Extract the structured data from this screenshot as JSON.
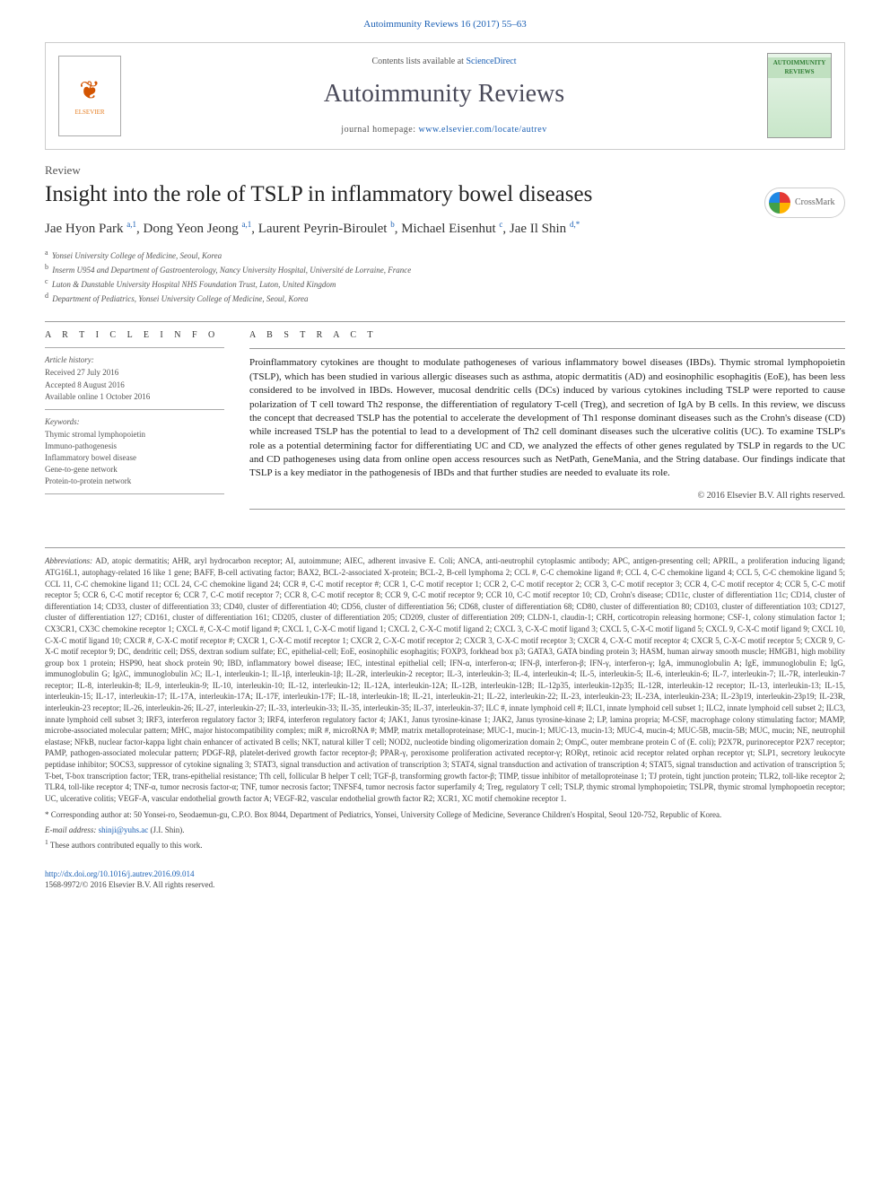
{
  "citation": {
    "journal_link_text": "Autoimmunity Reviews 16 (2017) 55–63"
  },
  "banner": {
    "contents_prefix": "Contents lists available at ",
    "contents_link": "ScienceDirect",
    "journal_title": "Autoimmunity Reviews",
    "homepage_prefix": "journal homepage: ",
    "homepage_link": "www.elsevier.com/locate/autrev",
    "elsevier_label": "ELSEVIER",
    "cover_label": "AUTOIMMUNITY REVIEWS"
  },
  "article": {
    "type": "Review",
    "title": "Insight into the role of TSLP in inflammatory bowel diseases",
    "crossmark_label": "CrossMark"
  },
  "authors_line": "Jae Hyon Park a,1, Dong Yeon Jeong a,1, Laurent Peyrin-Biroulet b, Michael Eisenhut c, Jae Il Shin d,*",
  "authors": [
    {
      "name": "Jae Hyon Park ",
      "sup": "a,1"
    },
    {
      "name": ", Dong Yeon Jeong ",
      "sup": "a,1"
    },
    {
      "name": ", Laurent Peyrin-Biroulet ",
      "sup": "b"
    },
    {
      "name": ", Michael Eisenhut ",
      "sup": "c"
    },
    {
      "name": ", Jae Il Shin ",
      "sup": "d,*"
    }
  ],
  "affiliations": [
    {
      "sup": "a",
      "text": "Yonsei University College of Medicine, Seoul, Korea"
    },
    {
      "sup": "b",
      "text": "Inserm U954 and Department of Gastroenterology, Nancy University Hospital, Université de Lorraine, France"
    },
    {
      "sup": "c",
      "text": "Luton & Dunstable University Hospital NHS Foundation Trust, Luton, United Kingdom"
    },
    {
      "sup": "d",
      "text": "Department of Pediatrics, Yonsei University College of Medicine, Seoul, Korea"
    }
  ],
  "info": {
    "section_title": "A R T I C L E   I N F O",
    "history_head": "Article history:",
    "history": [
      "Received 27 July 2016",
      "Accepted 8 August 2016",
      "Available online 1 October 2016"
    ],
    "keywords_head": "Keywords:",
    "keywords": [
      "Thymic stromal lymphopoietin",
      "Immuno-pathogenesis",
      "Inflammatory bowel disease",
      "Gene-to-gene network",
      "Protein-to-protein network"
    ]
  },
  "abstract": {
    "section_title": "A B S T R A C T",
    "text": "Proinflammatory cytokines are thought to modulate pathogeneses of various inflammatory bowel diseases (IBDs). Thymic stromal lymphopoietin (TSLP), which has been studied in various allergic diseases such as asthma, atopic dermatitis (AD) and eosinophilic esophagitis (EoE), has been less considered to be involved in IBDs. However, mucosal dendritic cells (DCs) induced by various cytokines including TSLP were reported to cause polarization of T cell toward Th2 response, the differentiation of regulatory T-cell (Treg), and secretion of IgA by B cells. In this review, we discuss the concept that decreased TSLP has the potential to accelerate the development of Th1 response dominant diseases such as the Crohn's disease (CD) while increased TSLP has the potential to lead to a development of Th2 cell dominant diseases such the ulcerative colitis (UC). To examine TSLP's role as a potential determining factor for differentiating UC and CD, we analyzed the effects of other genes regulated by TSLP in regards to the UC and CD pathogeneses using data from online open access resources such as NetPath, GeneMania, and the String database. Our findings indicate that TSLP is a key mediator in the pathogenesis of IBDs and that further studies are needed to evaluate its role.",
    "copyright": "© 2016 Elsevier B.V. All rights reserved."
  },
  "abbreviations": {
    "label": "Abbreviations:",
    "text": " AD, atopic dermatitis; AHR, aryl hydrocarbon receptor; AI, autoimmune; AIEC, adherent invasive E. Coli; ANCA, anti-neutrophil cytoplasmic antibody; APC, antigen-presenting cell; APRIL, a proliferation inducing ligand; ATG16L1, autophagy-related 16 like 1 gene; BAFF, B-cell activating factor; BAX2, BCL-2-associated X-protein; BCL-2, B-cell lymphoma 2; CCL #, C-C chemokine ligand #; CCL 4, C-C chemokine ligand 4; CCL 5, C-C chemokine ligand 5; CCL 11, C-C chemokine ligand 11; CCL 24, C-C chemokine ligand 24; CCR #, C-C motif receptor #; CCR 1, C-C motif receptor 1; CCR 2, C-C motif receptor 2; CCR 3, C-C motif receptor 3; CCR 4, C-C motif receptor 4; CCR 5, C-C motif receptor 5; CCR 6, C-C motif receptor 6; CCR 7, C-C motif receptor 7; CCR 8, C-C motif receptor 8; CCR 9, C-C motif receptor 9; CCR 10, C-C motif receptor 10; CD, Crohn's disease; CD11c, cluster of differentiation 11c; CD14, cluster of differentiation 14; CD33, cluster of differentiation 33; CD40, cluster of differentiation 40; CD56, cluster of differentiation 56; CD68, cluster of differentiation 68; CD80, cluster of differentiation 80; CD103, cluster of differentiation 103; CD127, cluster of differentiation 127; CD161, cluster of differentiation 161; CD205, cluster of differentiation 205; CD209, cluster of differentiation 209; CLDN-1, claudin-1; CRH, corticotropin releasing hormone; CSF-1, colony stimulation factor 1; CX3CR1, CX3C chemokine receptor 1; CXCL #, C-X-C motif ligand #; CXCL 1, C-X-C motif ligand 1; CXCL 2, C-X-C motif ligand 2; CXCL 3, C-X-C motif ligand 3; CXCL 5, C-X-C motif ligand 5; CXCL 9, C-X-C motif ligand 9; CXCL 10, C-X-C motif ligand 10; CXCR #, C-X-C motif receptor #; CXCR 1, C-X-C motif receptor 1; CXCR 2, C-X-C motif receptor 2; CXCR 3, C-X-C motif receptor 3; CXCR 4, C-X-C motif receptor 4; CXCR 5, C-X-C motif receptor 5; CXCR 9, C-X-C motif receptor 9; DC, dendritic cell; DSS, dextran sodium sulfate; EC, epithelial-cell; EoE, eosinophilic esophagitis; FOXP3, forkhead box p3; GATA3, GATA binding protein 3; HASM, human airway smooth muscle; HMGB1, high mobility group box 1 protein; HSP90, heat shock protein 90; IBD, inflammatory bowel disease; IEC, intestinal epithelial cell; IFN-α, interferon-α; IFN-β, interferon-β; IFN-γ, interferon-γ; IgA, immunoglobulin A; IgE, immunoglobulin E; IgG, immunoglobulin G; IgλC, immunoglobulin λC; IL-1, interleukin-1; IL-1β, interleukin-1β; IL-2R, interleukin-2 receptor; IL-3, interleukin-3; IL-4, interleukin-4; IL-5, interleukin-5; IL-6, interleukin-6; IL-7, interleukin-7; IL-7R, interleukin-7 receptor; IL-8, interleukin-8; IL-9, interleukin-9; IL-10, interleukin-10; IL-12, interleukin-12; IL-12A, interleukin-12A; IL-12B, interleukin-12B; IL-12p35, interleukin-12p35; IL-12R, interleukin-12 receptor; IL-13, interleukin-13; IL-15, interleukin-15; IL-17, interleukin-17; IL-17A, interleukin-17A; IL-17F, interleukin-17F; IL-18, interleukin-18; IL-21, interleukin-21; IL-22, interleukin-22; IL-23, interleukin-23; IL-23A, interleukin-23A; IL-23p19, interleukin-23p19; IL-23R, interleukin-23 receptor; IL-26, interleukin-26; IL-27, interleukin-27; IL-33, interleukin-33; IL-35, interleukin-35; IL-37, interleukin-37; ILC #, innate lymphoid cell #; ILC1, innate lymphoid cell subset 1; ILC2, innate lymphoid cell subset 2; ILC3, innate lymphoid cell subset 3; IRF3, interferon regulatory factor 3; IRF4, interferon regulatory factor 4; JAK1, Janus tyrosine-kinase 1; JAK2, Janus tyrosine-kinase 2; LP, lamina propria; M-CSF, macrophage colony stimulating factor; MAMP, microbe-associated molecular pattern; MHC, major histocompatibility complex; miR #, microRNA #; MMP, matrix metalloproteinase; MUC-1, mucin-1; MUC-13, mucin-13; MUC-4, mucin-4; MUC-5B, mucin-5B; MUC, mucin; NE, neutrophil elastase; NFkB, nuclear factor-kappa light chain enhancer of activated B cells; NKT, natural killer T cell; NOD2, nucleotide binding oligomerization domain 2; OmpC, outer membrane protein C of (E. coli); P2X7R, purinoreceptor P2X7 receptor; PAMP, pathogen-associated molecular pattern; PDGF-Rβ, platelet-derived growth factor receptor-β; PPAR-γ, peroxisome proliferation activated receptor-γ; RORγt, retinoic acid receptor related orphan receptor γt; SLP1, secretory leukocyte peptidase inhibitor; SOCS3, suppressor of cytokine signaling 3; STAT3, signal transduction and activation of transcription 3; STAT4, signal transduction and activation of transcription 4; STAT5, signal transduction and activation of transcription 5; T-bet, T-box transcription factor; TER, trans-epithelial resistance; Tfh cell, follicular B helper T cell; TGF-β, transforming growth factor-β; TIMP, tissue inhibitor of metalloproteinase 1; TJ protein, tight junction protein; TLR2, toll-like receptor 2; TLR4, toll-like receptor 4; TNF-α, tumor necrosis factor-α; TNF, tumor necrosis factor; TNFSF4, tumor necrosis factor superfamily 4; Treg, regulatory T cell; TSLP, thymic stromal lymphopoietin; TSLPR, thymic stromal lymphopoetin receptor; UC, ulcerative colitis; VEGF-A, vascular endothelial growth factor A; VEGF-R2, vascular endothelial growth factor R2; XCR1, XC motif chemokine receptor 1."
  },
  "corresponding": {
    "star": "*",
    "text": " Corresponding author at: 50 Yonsei-ro, Seodaemun-gu, C.P.O. Box 8044, Department of Pediatrics, Yonsei, University College of Medicine, Severance Children's Hospital, Seoul 120-752, Republic of Korea."
  },
  "email": {
    "label": "E-mail address: ",
    "address": "shinji@yuhs.ac",
    "suffix": " (J.I. Shin)."
  },
  "equal_note": {
    "sup": "1",
    "text": " These authors contributed equally to this work."
  },
  "footer": {
    "doi": "http://dx.doi.org/10.1016/j.autrev.2016.09.014",
    "issn_line": "1568-9972/© 2016 Elsevier B.V. All rights reserved."
  },
  "colors": {
    "link": "#1a5fb4",
    "text": "#333333",
    "muted": "#555555",
    "rule": "#999999"
  },
  "typography": {
    "body_pt": 11,
    "title_pt": 25,
    "journal_title_pt": 28,
    "authors_pt": 15,
    "small_pt": 9
  }
}
